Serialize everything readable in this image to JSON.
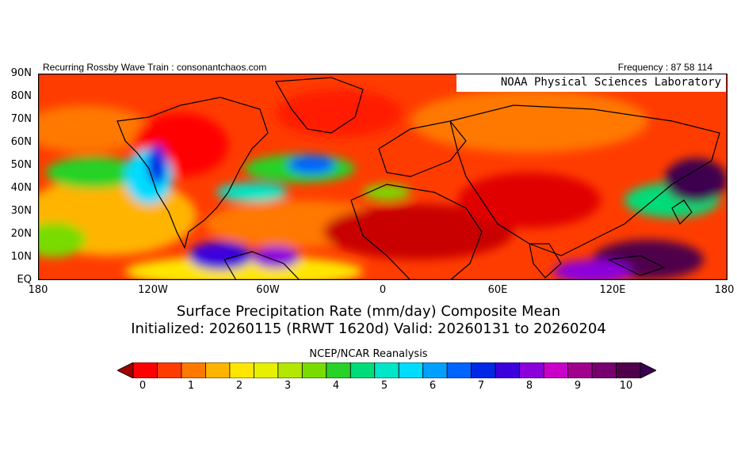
{
  "header": {
    "left_text": "Recurring Rossby Wave Train : consonantchaos.com",
    "right_text": "Frequency : 87 58 114"
  },
  "map": {
    "credit": "NOAA Physical Sciences Laboratory",
    "lat_labels": [
      "90N",
      "80N",
      "70N",
      "60N",
      "50N",
      "40N",
      "30N",
      "20N",
      "10N",
      "EQ"
    ],
    "lon_labels": [
      "180",
      "120W",
      "60W",
      "0",
      "60E",
      "120E",
      "180"
    ]
  },
  "title": {
    "line1": "Surface Precipitation Rate (mm/day) Composite Mean",
    "line2": "Initialized: 20260115 (RRWT 1620d) Valid: 20260131 to 20260204",
    "source": "NCEP/NCAR Reanalysis"
  },
  "colorbar": {
    "labels": [
      "0",
      "1",
      "2",
      "3",
      "4",
      "5",
      "6",
      "7",
      "8",
      "9",
      "10"
    ],
    "colors": [
      "#a00000",
      "#ff0000",
      "#ff3c00",
      "#ff7800",
      "#ffb400",
      "#ffe600",
      "#e6f000",
      "#b4e600",
      "#78dc00",
      "#28d228",
      "#00dc78",
      "#00e6c8",
      "#00dcff",
      "#00a0ff",
      "#0064ff",
      "#0028e6",
      "#3c00dc",
      "#8c00dc",
      "#c800c8",
      "#a0008c",
      "#78006e",
      "#50004b",
      "#3c0050"
    ],
    "accent_color": "#a00000"
  }
}
